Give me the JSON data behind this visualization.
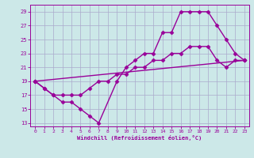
{
  "xlabel": "Windchill (Refroidissement éolien,°C)",
  "bg_color": "#cce8e8",
  "grid_color": "#aaaacc",
  "line_color": "#990099",
  "xlim": [
    -0.5,
    23.5
  ],
  "ylim": [
    12.5,
    30
  ],
  "xticks": [
    0,
    1,
    2,
    3,
    4,
    5,
    6,
    7,
    8,
    9,
    10,
    11,
    12,
    13,
    14,
    15,
    16,
    17,
    18,
    19,
    20,
    21,
    22,
    23
  ],
  "yticks": [
    13,
    15,
    17,
    19,
    21,
    23,
    25,
    27,
    29
  ],
  "series1_x": [
    0,
    1,
    2,
    3,
    4,
    5,
    6,
    7,
    9,
    10,
    11,
    12,
    13,
    14,
    15,
    16,
    17,
    18,
    19,
    20,
    21,
    22,
    23
  ],
  "series1_y": [
    19,
    18,
    17,
    16,
    16,
    15,
    14,
    13,
    19,
    21,
    22,
    23,
    23,
    26,
    26,
    29,
    29,
    29,
    29,
    27,
    25,
    23,
    22
  ],
  "series2_x": [
    0,
    1,
    2,
    3,
    4,
    5,
    6,
    7,
    8,
    9,
    10,
    11,
    12,
    13,
    14,
    15,
    16,
    17,
    18,
    19,
    20,
    21,
    22,
    23
  ],
  "series2_y": [
    19,
    18,
    17,
    17,
    17,
    17,
    18,
    19,
    19,
    20,
    20,
    21,
    21,
    22,
    22,
    23,
    23,
    24,
    24,
    24,
    22,
    21,
    22,
    22
  ],
  "series3_x": [
    0,
    23
  ],
  "series3_y": [
    19,
    22
  ],
  "marker": "D",
  "markersize": 2.5,
  "linewidth": 1.0
}
